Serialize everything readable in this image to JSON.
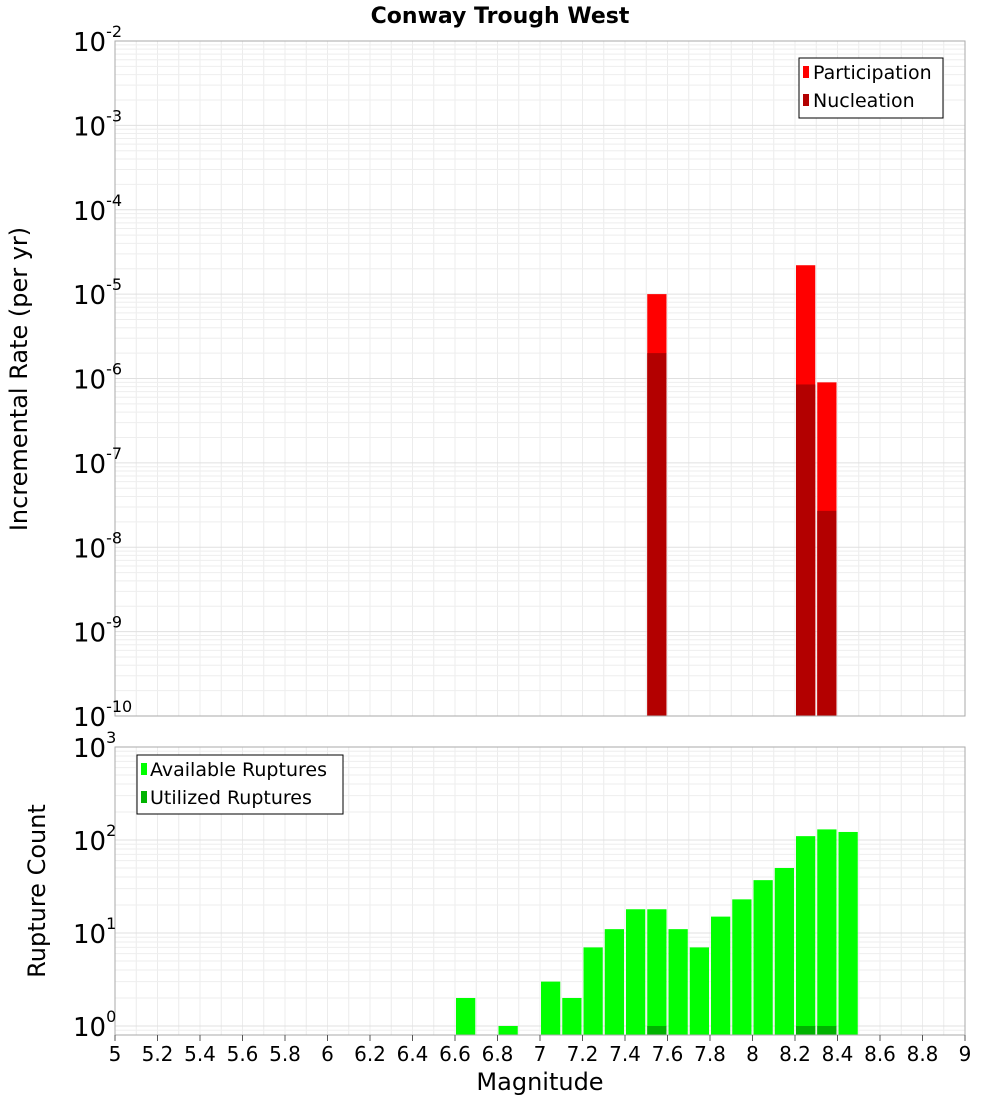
{
  "chart_data": [
    {
      "type": "bar",
      "title": "Conway Trough West",
      "ylabel": "Incremental Rate (per yr)",
      "yscale": "log",
      "ylim": [
        1e-10,
        0.01
      ],
      "y_tick_base": "10",
      "y_tick_exponents": [
        "-10",
        "-9",
        "-8",
        "-7",
        "-6",
        "-5",
        "-4",
        "-3",
        "-2"
      ],
      "xlim": [
        5,
        9
      ],
      "bin_width": 0.1,
      "legend_position": "top-right",
      "series": [
        {
          "name": "Participation",
          "color": "#ff0000",
          "x": [
            7.55,
            8.25,
            8.35
          ],
          "values": [
            1e-05,
            2.2e-05,
            9e-07
          ]
        },
        {
          "name": "Nucleation",
          "color": "#b30000",
          "x": [
            7.55,
            8.25,
            8.35
          ],
          "values": [
            2e-06,
            8.5e-07,
            2.7e-08
          ]
        }
      ]
    },
    {
      "type": "bar",
      "xlabel": "Magnitude",
      "ylabel": "Rupture Count",
      "yscale": "log",
      "ylim": [
        0.8,
        1000
      ],
      "y_tick_base": "10",
      "y_tick_exponents": [
        "0",
        "1",
        "2",
        "3"
      ],
      "xlim": [
        5,
        9
      ],
      "x_ticks": [
        "5",
        "5.2",
        "5.4",
        "5.6",
        "5.8",
        "6",
        "6.2",
        "6.4",
        "6.6",
        "6.8",
        "7",
        "7.2",
        "7.4",
        "7.6",
        "7.8",
        "8",
        "8.2",
        "8.4",
        "8.6",
        "8.8",
        "9"
      ],
      "bin_width": 0.1,
      "legend_position": "top-left",
      "series": [
        {
          "name": "Available Ruptures",
          "color": "#00ff00",
          "x": [
            6.65,
            6.85,
            7.05,
            7.15,
            7.25,
            7.35,
            7.45,
            7.55,
            7.65,
            7.75,
            7.85,
            7.95,
            8.05,
            8.15,
            8.25,
            8.35,
            8.45
          ],
          "values": [
            2,
            1,
            3,
            2,
            7,
            11,
            18,
            18,
            11,
            7,
            15,
            23,
            37,
            50,
            110,
            130,
            122
          ]
        },
        {
          "name": "Utilized Ruptures",
          "color": "#00b300",
          "x": [
            7.55,
            8.25,
            8.35
          ],
          "values": [
            1,
            1,
            1
          ]
        }
      ]
    }
  ]
}
